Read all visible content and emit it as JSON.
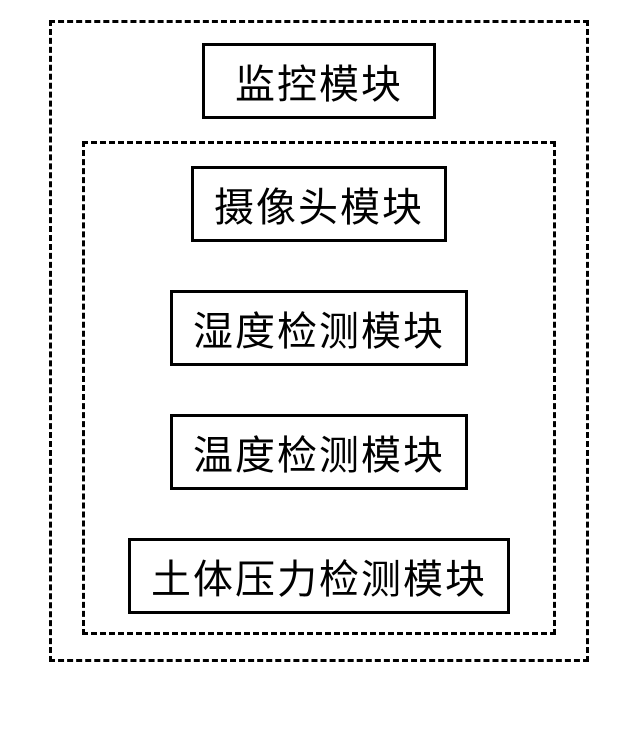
{
  "diagram": {
    "type": "block-diagram",
    "title": "监控模块",
    "modules": [
      "摄像头模块",
      "湿度检测模块",
      "温度检测模块",
      "土体压力检测模块"
    ],
    "border_color": "#000000",
    "background_color": "#ffffff",
    "text_color": "#000000",
    "outer_border_style": "dashed",
    "inner_border_style": "dashed",
    "box_border_style": "solid",
    "border_width": 3,
    "title_fontsize": 40,
    "module_fontsize": 40,
    "dash_length": 12,
    "gap_between_modules": 48
  }
}
